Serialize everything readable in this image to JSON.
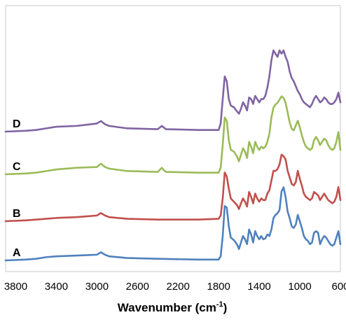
{
  "chart_data": {
    "type": "line",
    "xlabel": "Wavenumber (cm",
    "xlabel_sup": "-1",
    "xlabel_close": ")",
    "xlim": [
      3900,
      600
    ],
    "x_reversed": true,
    "xticks": [
      "3800",
      "3400",
      "3000",
      "2600",
      "2200",
      "1800",
      "1400",
      "1000",
      "600"
    ],
    "ylabel": "",
    "y_tick_labels": false,
    "grid": false,
    "legend": "none",
    "series": [
      {
        "name": "A",
        "color": "#4f81bd",
        "x": [
          3900,
          3700,
          3600,
          3500,
          3400,
          3200,
          3000,
          2960,
          2920,
          2880,
          2700,
          2400,
          2000,
          1800,
          1780,
          1760,
          1740,
          1720,
          1700,
          1680,
          1650,
          1620,
          1600,
          1580,
          1560,
          1540,
          1520,
          1500,
          1480,
          1460,
          1440,
          1420,
          1400,
          1380,
          1360,
          1340,
          1320,
          1300,
          1280,
          1260,
          1240,
          1220,
          1200,
          1180,
          1160,
          1140,
          1120,
          1100,
          1080,
          1060,
          1040,
          1020,
          1000,
          980,
          960,
          940,
          920,
          900,
          880,
          860,
          840,
          820,
          800,
          780,
          760,
          740,
          720,
          700,
          680,
          660,
          640,
          620,
          600
        ],
        "y": [
          0.0,
          0.01,
          0.02,
          0.04,
          0.05,
          0.06,
          0.07,
          0.1,
          0.07,
          0.05,
          0.03,
          0.02,
          0.01,
          0.01,
          0.05,
          0.3,
          0.67,
          0.65,
          0.42,
          0.28,
          0.25,
          0.2,
          0.14,
          0.22,
          0.3,
          0.26,
          0.2,
          0.38,
          0.32,
          0.22,
          0.36,
          0.3,
          0.26,
          0.3,
          0.26,
          0.27,
          0.32,
          0.3,
          0.38,
          0.52,
          0.56,
          0.58,
          0.62,
          0.85,
          0.9,
          0.78,
          0.6,
          0.52,
          0.42,
          0.4,
          0.44,
          0.56,
          0.48,
          0.4,
          0.3,
          0.26,
          0.24,
          0.2,
          0.22,
          0.34,
          0.36,
          0.34,
          0.2,
          0.26,
          0.3,
          0.28,
          0.24,
          0.2,
          0.18,
          0.2,
          0.28,
          0.36,
          0.2
        ]
      },
      {
        "name": "B",
        "color": "#c0504d",
        "x": [
          3900,
          3700,
          3600,
          3500,
          3400,
          3200,
          3000,
          2960,
          2920,
          2880,
          2700,
          2400,
          2000,
          1800,
          1780,
          1760,
          1740,
          1720,
          1700,
          1680,
          1650,
          1620,
          1600,
          1580,
          1560,
          1540,
          1520,
          1500,
          1480,
          1460,
          1440,
          1420,
          1400,
          1380,
          1360,
          1340,
          1320,
          1300,
          1280,
          1260,
          1240,
          1220,
          1200,
          1180,
          1160,
          1140,
          1120,
          1100,
          1080,
          1060,
          1040,
          1020,
          1000,
          980,
          960,
          940,
          920,
          900,
          880,
          860,
          840,
          820,
          800,
          780,
          760,
          740,
          720,
          700,
          680,
          660,
          640,
          620,
          600
        ],
        "y": [
          0.0,
          0.01,
          0.02,
          0.03,
          0.04,
          0.05,
          0.07,
          0.1,
          0.07,
          0.05,
          0.03,
          0.02,
          0.02,
          0.03,
          0.07,
          0.28,
          0.6,
          0.55,
          0.4,
          0.28,
          0.24,
          0.2,
          0.15,
          0.22,
          0.28,
          0.24,
          0.18,
          0.36,
          0.3,
          0.22,
          0.34,
          0.28,
          0.24,
          0.28,
          0.26,
          0.26,
          0.34,
          0.38,
          0.5,
          0.62,
          0.62,
          0.64,
          0.7,
          0.82,
          0.8,
          0.76,
          0.62,
          0.54,
          0.46,
          0.44,
          0.48,
          0.62,
          0.52,
          0.44,
          0.34,
          0.3,
          0.28,
          0.26,
          0.28,
          0.36,
          0.34,
          0.32,
          0.26,
          0.3,
          0.34,
          0.3,
          0.26,
          0.24,
          0.22,
          0.24,
          0.3,
          0.42,
          0.26
        ]
      },
      {
        "name": "C",
        "color": "#9bbb59",
        "x": [
          3900,
          3700,
          3600,
          3500,
          3400,
          3200,
          3000,
          2960,
          2920,
          2880,
          2700,
          2400,
          2360,
          2340,
          2320,
          2000,
          1800,
          1780,
          1760,
          1740,
          1720,
          1700,
          1680,
          1650,
          1620,
          1600,
          1580,
          1560,
          1540,
          1520,
          1500,
          1480,
          1460,
          1440,
          1420,
          1400,
          1380,
          1360,
          1340,
          1320,
          1300,
          1280,
          1260,
          1240,
          1220,
          1200,
          1180,
          1160,
          1140,
          1120,
          1100,
          1080,
          1060,
          1040,
          1020,
          1000,
          980,
          960,
          940,
          920,
          900,
          880,
          860,
          840,
          820,
          800,
          780,
          760,
          740,
          720,
          700,
          680,
          660,
          640,
          620,
          600
        ],
        "y": [
          0.0,
          0.01,
          0.02,
          0.04,
          0.06,
          0.08,
          0.09,
          0.13,
          0.09,
          0.07,
          0.04,
          0.03,
          0.08,
          0.05,
          0.03,
          0.02,
          0.02,
          0.08,
          0.36,
          0.7,
          0.66,
          0.42,
          0.3,
          0.28,
          0.22,
          0.16,
          0.24,
          0.32,
          0.28,
          0.2,
          0.4,
          0.34,
          0.26,
          0.4,
          0.34,
          0.3,
          0.34,
          0.32,
          0.34,
          0.4,
          0.5,
          0.7,
          0.82,
          0.86,
          0.88,
          0.92,
          0.96,
          0.94,
          0.88,
          0.76,
          0.64,
          0.56,
          0.54,
          0.6,
          0.66,
          0.58,
          0.48,
          0.4,
          0.34,
          0.32,
          0.3,
          0.32,
          0.42,
          0.46,
          0.42,
          0.36,
          0.4,
          0.44,
          0.42,
          0.36,
          0.32,
          0.3,
          0.32,
          0.4,
          0.52,
          0.3
        ]
      },
      {
        "name": "D",
        "color": "#8064a2",
        "x": [
          3900,
          3700,
          3600,
          3500,
          3400,
          3200,
          3000,
          2960,
          2920,
          2880,
          2700,
          2400,
          2360,
          2340,
          2320,
          2000,
          1800,
          1780,
          1760,
          1740,
          1720,
          1700,
          1680,
          1650,
          1620,
          1600,
          1580,
          1560,
          1540,
          1520,
          1500,
          1480,
          1460,
          1440,
          1420,
          1400,
          1380,
          1360,
          1340,
          1320,
          1300,
          1280,
          1260,
          1240,
          1220,
          1200,
          1180,
          1160,
          1140,
          1120,
          1100,
          1080,
          1060,
          1040,
          1020,
          1000,
          980,
          960,
          940,
          920,
          900,
          880,
          860,
          840,
          820,
          800,
          780,
          760,
          740,
          720,
          700,
          680,
          660,
          640,
          620,
          600
        ],
        "y": [
          0.0,
          0.01,
          0.02,
          0.04,
          0.06,
          0.07,
          0.1,
          0.13,
          0.09,
          0.07,
          0.04,
          0.03,
          0.07,
          0.05,
          0.03,
          0.02,
          0.02,
          0.1,
          0.4,
          0.68,
          0.62,
          0.4,
          0.32,
          0.3,
          0.25,
          0.22,
          0.28,
          0.36,
          0.32,
          0.26,
          0.42,
          0.4,
          0.34,
          0.44,
          0.4,
          0.36,
          0.4,
          0.4,
          0.44,
          0.54,
          0.68,
          0.88,
          1.0,
          0.96,
          0.92,
          1.0,
          0.96,
          1.0,
          0.92,
          0.86,
          0.74,
          0.66,
          0.62,
          0.56,
          0.5,
          0.46,
          0.4,
          0.36,
          0.34,
          0.32,
          0.3,
          0.34,
          0.4,
          0.44,
          0.4,
          0.36,
          0.38,
          0.42,
          0.4,
          0.36,
          0.34,
          0.34,
          0.36,
          0.4,
          0.48,
          0.36
        ]
      }
    ]
  }
}
